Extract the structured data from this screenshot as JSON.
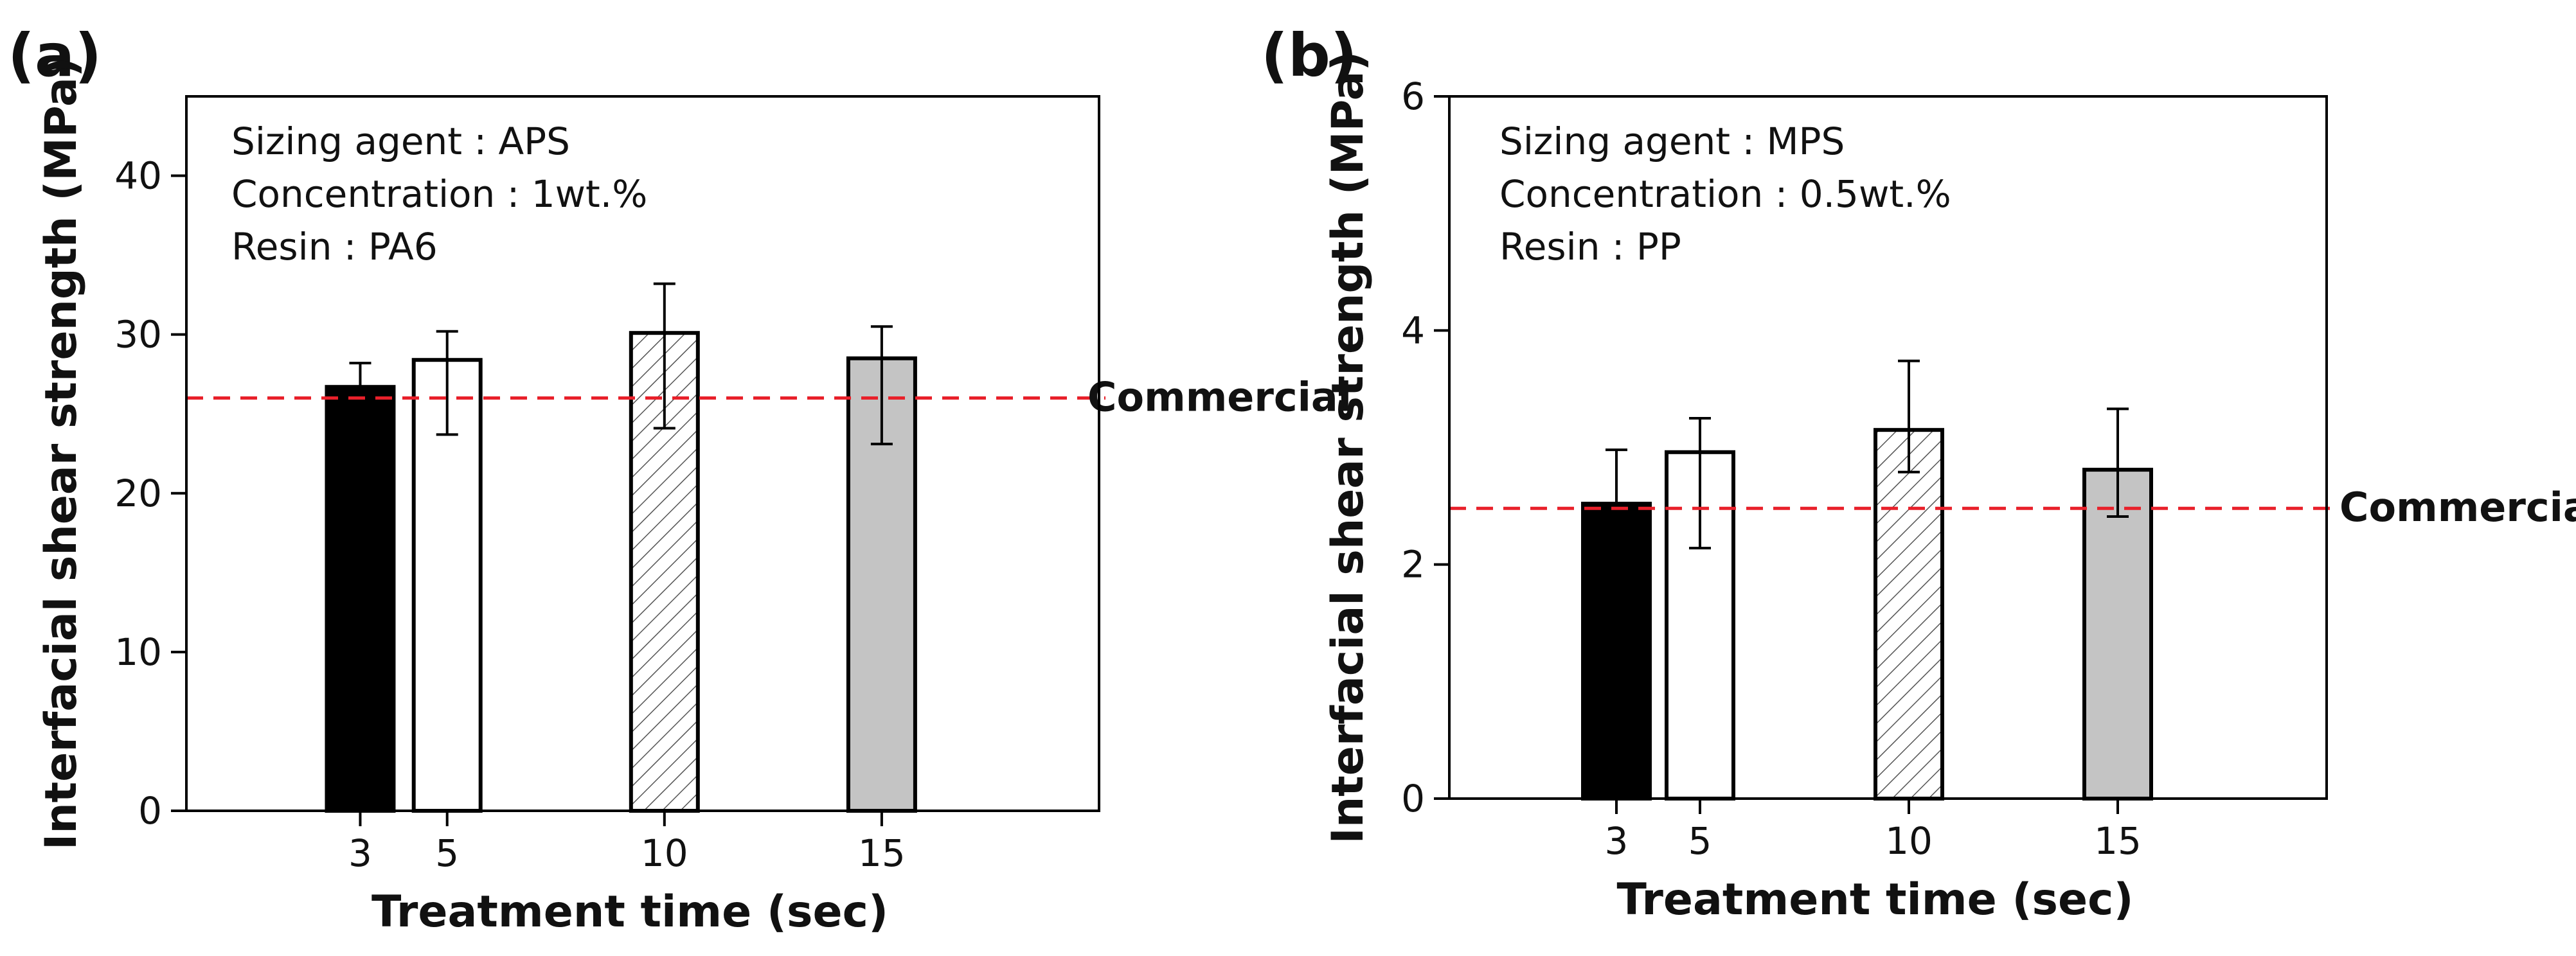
{
  "chart_data": [
    {
      "panel_label": "(a)",
      "type": "bar",
      "categories": [
        "3",
        "5",
        "10",
        "15"
      ],
      "x": [
        3,
        5,
        10,
        15
      ],
      "values": [
        26.7,
        28.4,
        30.1,
        28.5
      ],
      "error_upper": [
        28.2,
        30.2,
        33.2,
        30.5
      ],
      "error_lower": [
        26.7,
        23.7,
        24.1,
        23.1
      ],
      "bar_fills": [
        "#000000",
        "#ffffff",
        "hatch",
        "#c4c4c4"
      ],
      "xlabel": "Treatment time (sec)",
      "ylabel": "Interfacial shear strength (MPa)",
      "ylim": [
        0,
        45
      ],
      "yticks": [
        0,
        10,
        20,
        30,
        40
      ],
      "xlim": [
        -1,
        20
      ],
      "grid": false,
      "reference_line": {
        "value": 26,
        "label": "Commercial",
        "color": "#e8202a"
      },
      "annotations": [
        "Sizing agent : APS",
        "Concentration : 1wt.%",
        "Resin : PA6"
      ]
    },
    {
      "panel_label": "(b)",
      "type": "bar",
      "categories": [
        "3",
        "5",
        "10",
        "15"
      ],
      "x": [
        3,
        5,
        10,
        15
      ],
      "values": [
        2.52,
        2.96,
        3.15,
        2.81
      ],
      "error_upper": [
        2.98,
        3.25,
        3.74,
        3.33
      ],
      "error_lower": [
        2.52,
        2.14,
        2.79,
        2.41
      ],
      "bar_fills": [
        "#000000",
        "#ffffff",
        "hatch",
        "#c4c4c4"
      ],
      "xlabel": "Treatment time (sec)",
      "ylabel": "Interfacial shear strength (MPa)",
      "ylim": [
        0,
        6
      ],
      "yticks": [
        0,
        2,
        4,
        6
      ],
      "xlim": [
        -1,
        20
      ],
      "grid": false,
      "reference_line": {
        "value": 2.48,
        "label": "Commercial",
        "color": "#e8202a"
      },
      "annotations": [
        "Sizing agent : MPS",
        "Concentration : 0.5wt.%",
        "Resin : PP"
      ]
    }
  ]
}
